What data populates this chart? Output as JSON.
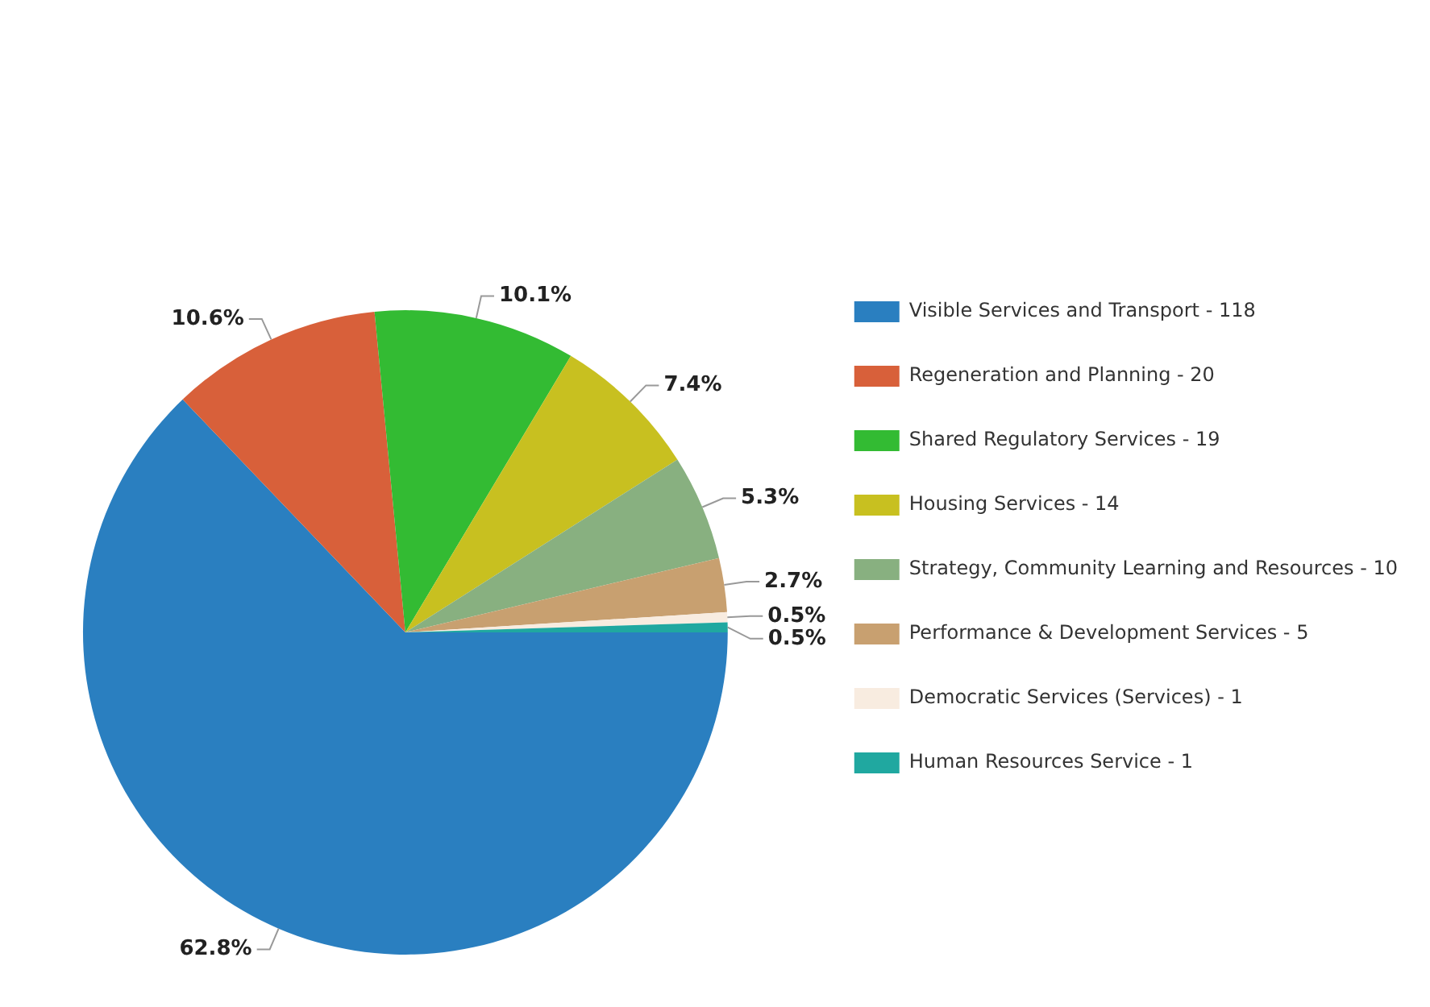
{
  "chart_data": {
    "type": "pie",
    "categories": [
      "Visible Services and Transport - 118",
      "Regeneration and Planning - 20",
      "Shared Regulatory Services - 19",
      "Housing Services - 14",
      "Strategy, Community Learning and Resources - 10",
      "Performance & Development Services - 5",
      "Democratic Services (Services) - 1",
      "Human Resources Service - 1"
    ],
    "values": [
      62.8,
      10.6,
      10.1,
      7.4,
      5.3,
      2.7,
      0.5,
      0.5
    ],
    "colors": [
      "#2a7fc0",
      "#d8603a",
      "#33bb33",
      "#c8c020",
      "#88b080",
      "#c8a070",
      "#f8ece0",
      "#20a8a0"
    ],
    "value_labels": [
      "62.8%",
      "10.6%",
      "10.1%",
      "7.4%",
      "5.3%",
      "2.7%",
      "0.5%",
      "0.5%"
    ],
    "legend": "top right"
  }
}
